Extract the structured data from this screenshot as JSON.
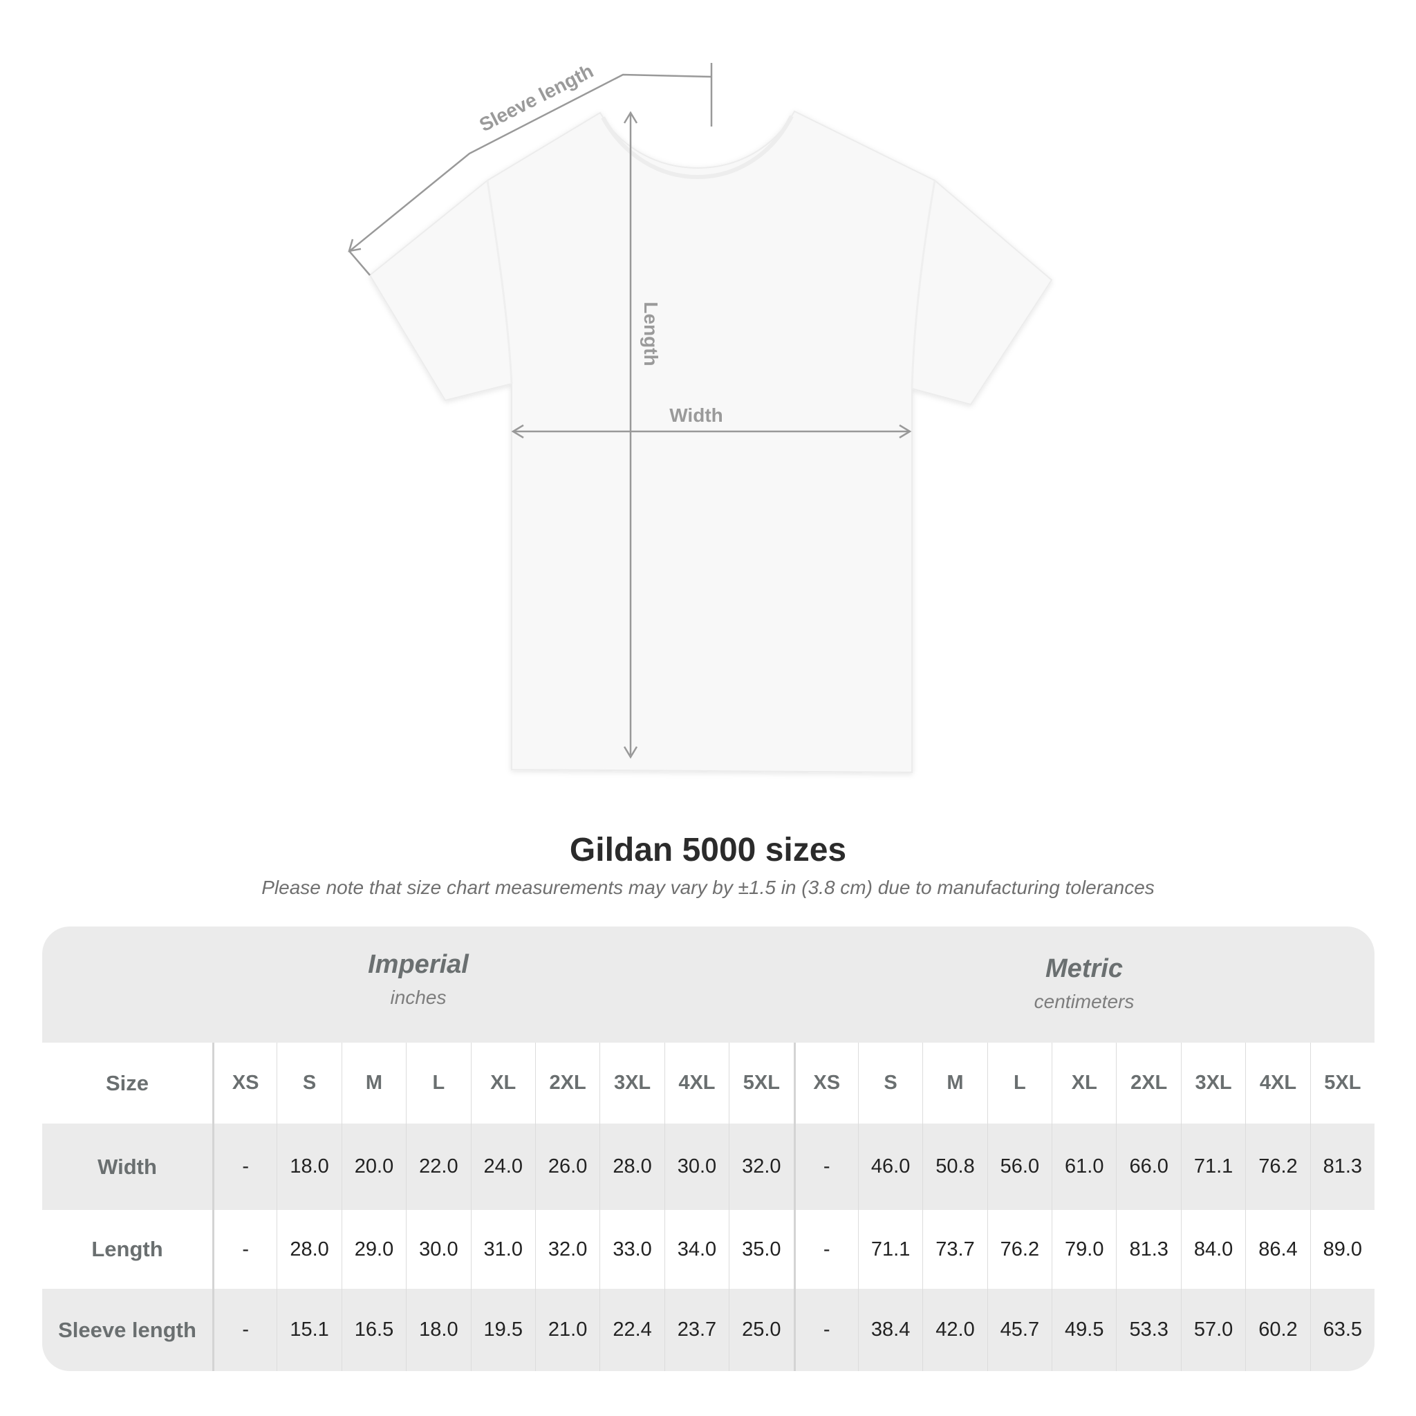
{
  "diagram": {
    "labels": {
      "sleeve_length": "Sleeve length",
      "length": "Length",
      "width": "Width"
    }
  },
  "title": "Gildan 5000 sizes",
  "note": "Please note that size chart measurements may vary by ±1.5 in (3.8 cm) due to manufacturing tolerances",
  "colors": {
    "header_band": "#ebebeb",
    "label_text": "#6a6f70",
    "value_text": "#222222"
  },
  "table": {
    "imperial": {
      "name": "Imperial",
      "unit": "inches"
    },
    "metric": {
      "name": "Metric",
      "unit": "centimeters"
    },
    "size_label": "Size",
    "sizes": [
      "XS",
      "S",
      "M",
      "L",
      "XL",
      "2XL",
      "3XL",
      "4XL",
      "5XL"
    ],
    "rows": [
      {
        "label": "Width",
        "imperial": [
          "-",
          "18.0",
          "20.0",
          "22.0",
          "24.0",
          "26.0",
          "28.0",
          "30.0",
          "32.0"
        ],
        "metric": [
          "-",
          "46.0",
          "50.8",
          "56.0",
          "61.0",
          "66.0",
          "71.1",
          "76.2",
          "81.3"
        ]
      },
      {
        "label": "Length",
        "imperial": [
          "-",
          "28.0",
          "29.0",
          "30.0",
          "31.0",
          "32.0",
          "33.0",
          "34.0",
          "35.0"
        ],
        "metric": [
          "-",
          "71.1",
          "73.7",
          "76.2",
          "79.0",
          "81.3",
          "84.0",
          "86.4",
          "89.0"
        ]
      },
      {
        "label": "Sleeve length",
        "imperial": [
          "-",
          "15.1",
          "16.5",
          "18.0",
          "19.5",
          "21.0",
          "22.4",
          "23.7",
          "25.0"
        ],
        "metric": [
          "-",
          "38.4",
          "42.0",
          "45.7",
          "49.5",
          "53.3",
          "57.0",
          "60.2",
          "63.5"
        ]
      }
    ]
  }
}
